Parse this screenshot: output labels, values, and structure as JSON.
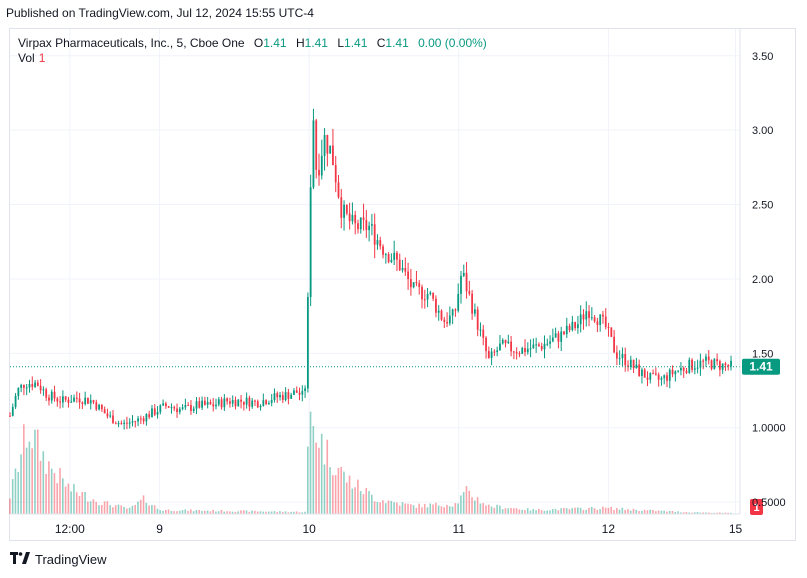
{
  "header": {
    "published": "Published on TradingView.com, Jul 12, 2024 15:55 UTC-4"
  },
  "legend": {
    "symbol": "Virpax Pharmaceuticals, Inc., 5, Cboe One",
    "o_label": "O",
    "o_value": "1.41",
    "h_label": "H",
    "h_value": "1.41",
    "l_label": "L",
    "l_value": "1.41",
    "c_label": "C",
    "c_value": "1.41",
    "change": "0.00 (0.00%)",
    "vol_label": "Vol",
    "vol_value": "1"
  },
  "footer": {
    "brand": "TradingView",
    "logo_icon": "tradingview-logo-icon"
  },
  "colors": {
    "up": "#089981",
    "down": "#f23645",
    "grid": "#f0f3fa",
    "text": "#131722"
  },
  "chart_data": {
    "type": "candlestick",
    "interval": "5",
    "y_ticks": [
      "3.50",
      "3.00",
      "2.50",
      "2.00",
      "1.50",
      "1.0000",
      "0.5000"
    ],
    "y_tick_values": [
      3.5,
      3.0,
      2.5,
      2.0,
      1.5,
      1.0,
      0.5
    ],
    "ylim": [
      0.42,
      3.68
    ],
    "x_ticks": [
      "12:00",
      "9",
      "10",
      "11",
      "12",
      "15"
    ],
    "x_tick_positions": [
      0.4,
      1,
      2,
      3,
      4,
      4.85
    ],
    "xlim": [
      0.0,
      4.88
    ],
    "last_price": "1.41",
    "last_price_value": 1.41,
    "last_volume": "1",
    "anchors": [
      [
        0.0,
        1.08
      ],
      [
        0.05,
        1.25
      ],
      [
        0.1,
        1.3
      ],
      [
        0.18,
        1.3
      ],
      [
        0.25,
        1.22
      ],
      [
        0.35,
        1.18
      ],
      [
        0.45,
        1.2
      ],
      [
        0.55,
        1.18
      ],
      [
        0.65,
        1.08
      ],
      [
        0.75,
        1.02
      ],
      [
        0.85,
        1.05
      ],
      [
        0.95,
        1.1
      ],
      [
        1.05,
        1.15
      ],
      [
        1.15,
        1.12
      ],
      [
        1.25,
        1.15
      ],
      [
        1.35,
        1.15
      ],
      [
        1.45,
        1.18
      ],
      [
        1.55,
        1.18
      ],
      [
        1.65,
        1.17
      ],
      [
        1.75,
        1.2
      ],
      [
        1.85,
        1.22
      ],
      [
        1.92,
        1.24
      ],
      [
        1.97,
        1.2
      ],
      [
        2.0,
        2.1
      ],
      [
        2.02,
        3.25
      ],
      [
        2.05,
        2.7
      ],
      [
        2.1,
        2.95
      ],
      [
        2.15,
        2.85
      ],
      [
        2.22,
        2.45
      ],
      [
        2.3,
        2.35
      ],
      [
        2.4,
        2.35
      ],
      [
        2.5,
        2.2
      ],
      [
        2.6,
        2.1
      ],
      [
        2.7,
        1.92
      ],
      [
        2.8,
        1.9
      ],
      [
        2.9,
        1.72
      ],
      [
        2.97,
        1.75
      ],
      [
        3.02,
        2.05
      ],
      [
        3.08,
        1.85
      ],
      [
        3.14,
        1.65
      ],
      [
        3.2,
        1.45
      ],
      [
        3.28,
        1.55
      ],
      [
        3.4,
        1.52
      ],
      [
        3.55,
        1.55
      ],
      [
        3.68,
        1.62
      ],
      [
        3.8,
        1.7
      ],
      [
        3.86,
        1.8
      ],
      [
        3.92,
        1.75
      ],
      [
        3.98,
        1.68
      ],
      [
        4.05,
        1.5
      ],
      [
        4.12,
        1.45
      ],
      [
        4.2,
        1.38
      ],
      [
        4.28,
        1.33
      ],
      [
        4.35,
        1.32
      ],
      [
        4.45,
        1.38
      ],
      [
        4.55,
        1.42
      ],
      [
        4.65,
        1.44
      ],
      [
        4.75,
        1.42
      ],
      [
        4.82,
        1.41
      ]
    ],
    "volume_anchors": [
      [
        0.0,
        0.18
      ],
      [
        0.12,
        0.85
      ],
      [
        0.25,
        0.5
      ],
      [
        0.4,
        0.25
      ],
      [
        0.6,
        0.12
      ],
      [
        0.8,
        0.05
      ],
      [
        0.9,
        0.15
      ],
      [
        1.0,
        0.04
      ],
      [
        1.5,
        0.03
      ],
      [
        1.98,
        0.02
      ],
      [
        2.0,
        1.0
      ],
      [
        2.1,
        0.65
      ],
      [
        2.25,
        0.35
      ],
      [
        2.45,
        0.15
      ],
      [
        2.7,
        0.08
      ],
      [
        2.98,
        0.1
      ],
      [
        3.05,
        0.22
      ],
      [
        3.2,
        0.08
      ],
      [
        3.5,
        0.04
      ],
      [
        3.98,
        0.06
      ],
      [
        4.2,
        0.04
      ],
      [
        4.5,
        0.02
      ],
      [
        4.82,
        0.01
      ]
    ]
  }
}
